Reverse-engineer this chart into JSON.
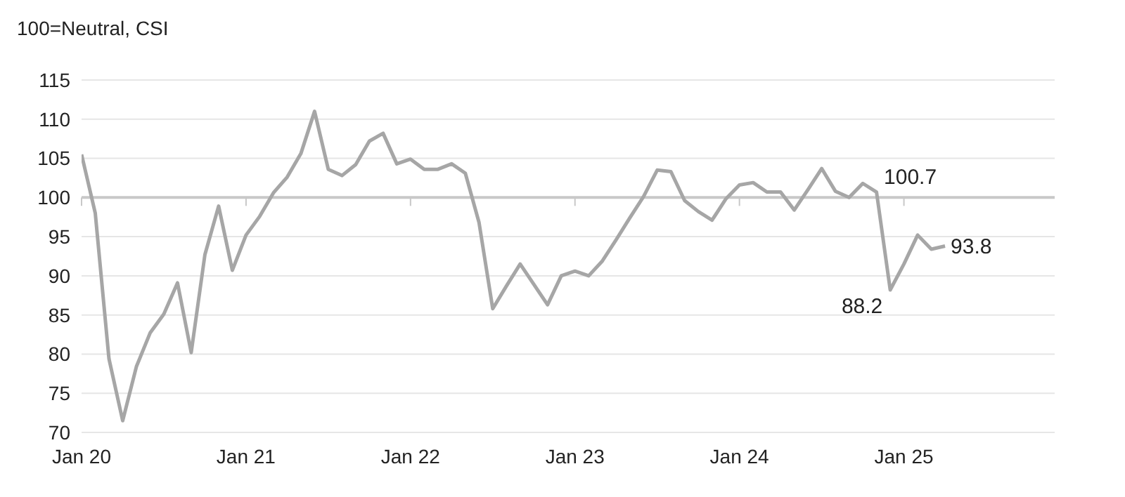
{
  "chart_data": {
    "type": "line",
    "ylabel": "100=Neutral, CSI",
    "x": [
      "2020-01",
      "2020-02",
      "2020-03",
      "2020-04",
      "2020-05",
      "2020-06",
      "2020-07",
      "2020-08",
      "2020-09",
      "2020-10",
      "2020-11",
      "2020-12",
      "2021-01",
      "2021-02",
      "2021-03",
      "2021-04",
      "2021-05",
      "2021-06",
      "2021-07",
      "2021-08",
      "2021-09",
      "2021-10",
      "2021-11",
      "2021-12",
      "2022-01",
      "2022-02",
      "2022-03",
      "2022-04",
      "2022-05",
      "2022-06",
      "2022-07",
      "2022-08",
      "2022-09",
      "2022-10",
      "2022-11",
      "2022-12",
      "2023-01",
      "2023-02",
      "2023-03",
      "2023-04",
      "2023-05",
      "2023-06",
      "2023-07",
      "2023-08",
      "2023-09",
      "2023-10",
      "2023-11",
      "2023-12",
      "2024-01",
      "2024-02",
      "2024-03",
      "2024-04",
      "2024-05",
      "2024-06",
      "2024-07",
      "2024-08",
      "2024-09",
      "2024-10",
      "2024-11",
      "2024-12",
      "2025-01",
      "2025-02",
      "2025-03",
      "2025-04"
    ],
    "series": [
      {
        "color": "#a6a6a6",
        "values": [
          105.5,
          98.0,
          79.4,
          71.5,
          78.4,
          82.7,
          85.1,
          89.1,
          80.2,
          92.7,
          98.9,
          90.7,
          95.2,
          97.6,
          100.6,
          102.6,
          105.6,
          111.0,
          103.6,
          102.8,
          104.2,
          107.2,
          108.2,
          104.3,
          104.9,
          103.6,
          103.6,
          104.3,
          103.1,
          96.8,
          85.8,
          88.7,
          91.5,
          88.9,
          86.3,
          90.0,
          90.6,
          90.0,
          91.9,
          94.6,
          97.4,
          100.1,
          103.5,
          103.3,
          99.6,
          98.2,
          97.1,
          99.8,
          101.6,
          101.9,
          100.7,
          100.7,
          98.4,
          101.0,
          103.7,
          100.8,
          100.0,
          101.8,
          100.7,
          88.2,
          91.5,
          95.2,
          93.4,
          93.8
        ]
      }
    ],
    "xlim": [
      "2020-01",
      "2025-12"
    ],
    "xticks": [
      {
        "value": "2020-01",
        "label": "Jan 20"
      },
      {
        "value": "2021-01",
        "label": "Jan 21"
      },
      {
        "value": "2022-01",
        "label": "Jan 22"
      },
      {
        "value": "2023-01",
        "label": "Jan 23"
      },
      {
        "value": "2024-01",
        "label": "Jan 24"
      },
      {
        "value": "2025-01",
        "label": "Jan 25"
      }
    ],
    "ylim": [
      70,
      115
    ],
    "yticks": [
      70,
      75,
      80,
      85,
      90,
      95,
      100,
      105,
      110,
      115
    ],
    "grid": "y",
    "legend": false,
    "marker": "none",
    "line_style": "solid",
    "ref_lines": [
      {
        "axis": "y",
        "value": 100,
        "color": "#c8c8c8"
      }
    ],
    "annotations": [
      {
        "text": "100.7",
        "x": "2024-11",
        "y": 100.7
      },
      {
        "text": "88.2",
        "x": "2024-12",
        "y": 88.2
      },
      {
        "text": "93.8",
        "x": "2025-04",
        "y": 93.8
      }
    ]
  }
}
